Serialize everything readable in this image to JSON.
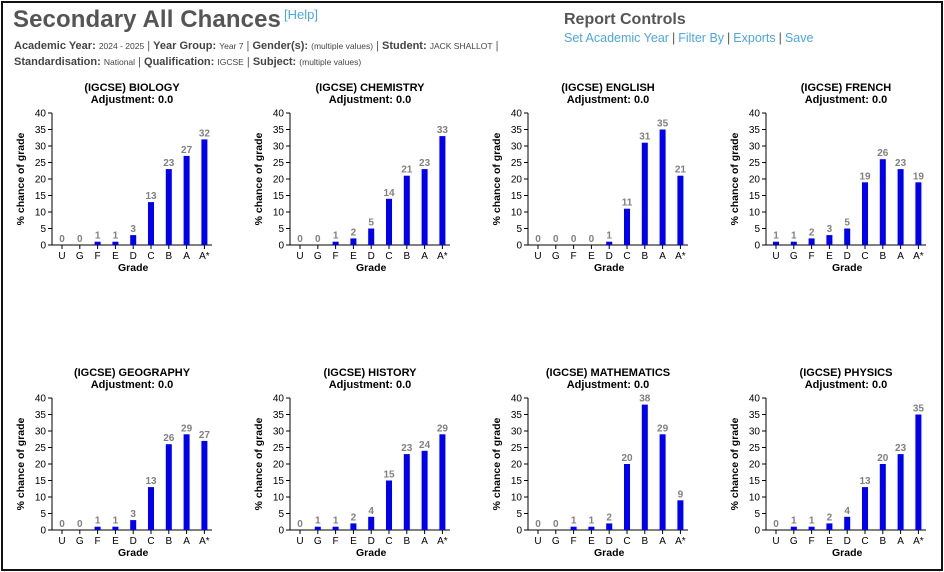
{
  "header": {
    "title": "Secondary All Chances",
    "help_label": "[Help]"
  },
  "filters": {
    "academic_year_label": "Academic Year:",
    "academic_year_value": "2024 - 2025",
    "year_group_label": "Year Group:",
    "year_group_value": "Year 7",
    "gender_label": "Gender(s):",
    "gender_value": "(multiple values)",
    "student_label": "Student:",
    "student_value": "JACK SHALLOT",
    "standardisation_label": "Standardisation:",
    "standardisation_value": "National",
    "qualification_label": "Qualification:",
    "qualification_value": "IGCSE",
    "subject_label": "Subject:",
    "subject_value": "(multiple values)",
    "separator": "|"
  },
  "report_controls": {
    "title": "Report Controls",
    "links": [
      "Set Academic Year",
      "Filter By",
      "Exports",
      "Save"
    ]
  },
  "colors": {
    "bar": "#0000ee",
    "value_label": "#808080",
    "link": "#4da6e0"
  },
  "chart_data": [
    {
      "type": "bar",
      "title": "(IGCSE) BIOLOGY",
      "subtitle": "Adjustment: 0.0",
      "xlabel": "Grade",
      "ylabel": "% chance of grade",
      "categories": [
        "U",
        "G",
        "F",
        "E",
        "D",
        "C",
        "B",
        "A",
        "A*"
      ],
      "values": [
        0,
        0,
        1,
        1,
        3,
        13,
        23,
        27,
        32
      ],
      "ylim": [
        0,
        40
      ],
      "yticks": [
        0,
        5,
        10,
        15,
        20,
        25,
        30,
        35,
        40
      ]
    },
    {
      "type": "bar",
      "title": "(IGCSE) CHEMISTRY",
      "subtitle": "Adjustment: 0.0",
      "xlabel": "Grade",
      "ylabel": "% chance of grade",
      "categories": [
        "U",
        "G",
        "F",
        "E",
        "D",
        "C",
        "B",
        "A",
        "A*"
      ],
      "values": [
        0,
        0,
        1,
        2,
        5,
        14,
        21,
        23,
        33
      ],
      "ylim": [
        0,
        40
      ],
      "yticks": [
        0,
        5,
        10,
        15,
        20,
        25,
        30,
        35,
        40
      ]
    },
    {
      "type": "bar",
      "title": "(IGCSE) ENGLISH",
      "subtitle": "Adjustment: 0.0",
      "xlabel": "Grade",
      "ylabel": "% chance of grade",
      "categories": [
        "U",
        "G",
        "F",
        "E",
        "D",
        "C",
        "B",
        "A",
        "A*"
      ],
      "values": [
        0,
        0,
        0,
        0,
        1,
        11,
        31,
        35,
        21
      ],
      "ylim": [
        0,
        40
      ],
      "yticks": [
        0,
        5,
        10,
        15,
        20,
        25,
        30,
        35,
        40
      ]
    },
    {
      "type": "bar",
      "title": "(IGCSE) FRENCH",
      "subtitle": "Adjustment: 0.0",
      "xlabel": "Grade",
      "ylabel": "% chance of grade",
      "categories": [
        "U",
        "G",
        "F",
        "E",
        "D",
        "C",
        "B",
        "A",
        "A*"
      ],
      "values": [
        1,
        1,
        2,
        3,
        5,
        19,
        26,
        23,
        19
      ],
      "ylim": [
        0,
        40
      ],
      "yticks": [
        0,
        5,
        10,
        15,
        20,
        25,
        30,
        35,
        40
      ]
    },
    {
      "type": "bar",
      "title": "(IGCSE) GEOGRAPHY",
      "subtitle": "Adjustment: 0.0",
      "xlabel": "Grade",
      "ylabel": "% chance of grade",
      "categories": [
        "U",
        "G",
        "F",
        "E",
        "D",
        "C",
        "B",
        "A",
        "A*"
      ],
      "values": [
        0,
        0,
        1,
        1,
        3,
        13,
        26,
        29,
        27
      ],
      "ylim": [
        0,
        40
      ],
      "yticks": [
        0,
        5,
        10,
        15,
        20,
        25,
        30,
        35,
        40
      ]
    },
    {
      "type": "bar",
      "title": "(IGCSE) HISTORY",
      "subtitle": "Adjustment: 0.0",
      "xlabel": "Grade",
      "ylabel": "% chance of grade",
      "categories": [
        "U",
        "G",
        "F",
        "E",
        "D",
        "C",
        "B",
        "A",
        "A*"
      ],
      "values": [
        0,
        1,
        1,
        2,
        4,
        15,
        23,
        24,
        29
      ],
      "ylim": [
        0,
        40
      ],
      "yticks": [
        0,
        5,
        10,
        15,
        20,
        25,
        30,
        35,
        40
      ]
    },
    {
      "type": "bar",
      "title": "(IGCSE) MATHEMATICS",
      "subtitle": "Adjustment: 0.0",
      "xlabel": "Grade",
      "ylabel": "% chance of grade",
      "categories": [
        "U",
        "G",
        "F",
        "E",
        "D",
        "C",
        "B",
        "A",
        "A*"
      ],
      "values": [
        0,
        0,
        1,
        1,
        2,
        20,
        38,
        29,
        9
      ],
      "ylim": [
        0,
        40
      ],
      "yticks": [
        0,
        5,
        10,
        15,
        20,
        25,
        30,
        35,
        40
      ]
    },
    {
      "type": "bar",
      "title": "(IGCSE) PHYSICS",
      "subtitle": "Adjustment: 0.0",
      "xlabel": "Grade",
      "ylabel": "% chance of grade",
      "categories": [
        "U",
        "G",
        "F",
        "E",
        "D",
        "C",
        "B",
        "A",
        "A*"
      ],
      "values": [
        0,
        1,
        1,
        2,
        4,
        13,
        20,
        23,
        35
      ],
      "ylim": [
        0,
        40
      ],
      "yticks": [
        0,
        5,
        10,
        15,
        20,
        25,
        30,
        35,
        40
      ]
    }
  ]
}
